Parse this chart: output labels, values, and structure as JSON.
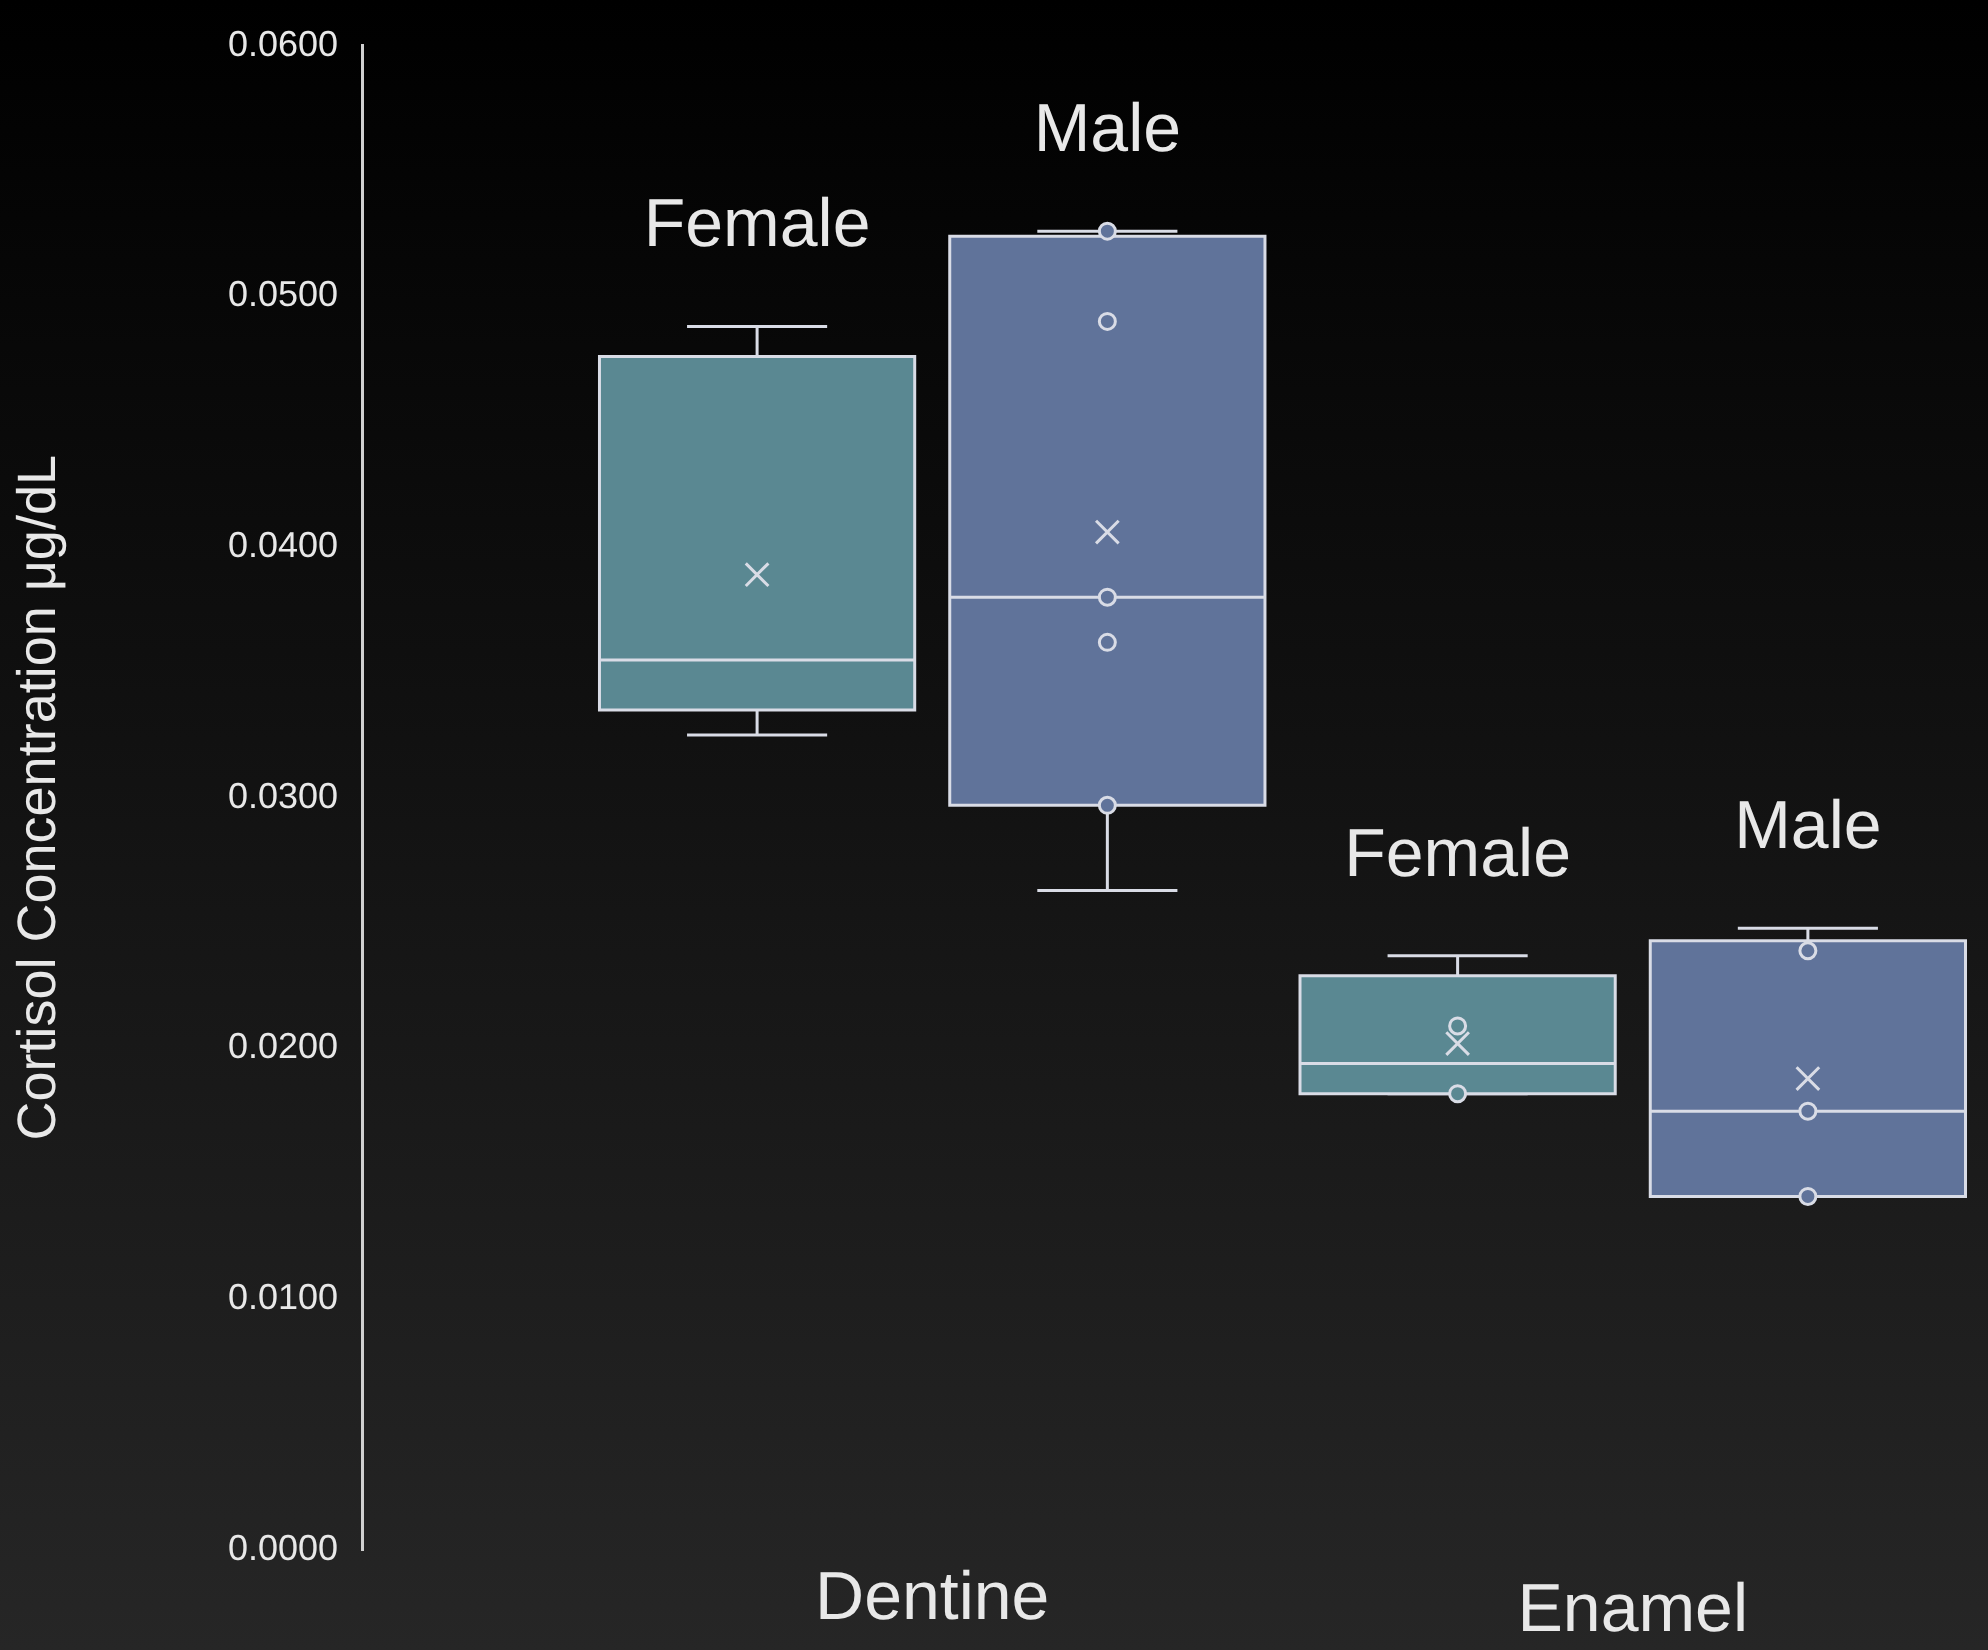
{
  "chart_data": {
    "type": "box",
    "ylabel": "Cortisol Concentration μg/dL",
    "categories": [
      "Dentine",
      "Enamel"
    ],
    "ylim": [
      0,
      0.06
    ],
    "yticks": [
      {
        "value": 0,
        "label": "0.0000"
      },
      {
        "value": 0.01,
        "label": "0.0100"
      },
      {
        "value": 0.02,
        "label": "0.0200"
      },
      {
        "value": 0.03,
        "label": "0.0300"
      },
      {
        "value": 0.04,
        "label": "0.0400"
      },
      {
        "value": 0.05,
        "label": "0.0500"
      },
      {
        "value": 0.06,
        "label": "0.0600"
      }
    ],
    "grid": false,
    "series": [
      {
        "name": "Female",
        "color": "#5a8892",
        "boxes": [
          {
            "low": 0.0325,
            "q1": 0.0335,
            "median": 0.0355,
            "q3": 0.0476,
            "high": 0.0488,
            "mean": 0.0389
          },
          {
            "low": 0.0182,
            "q1": 0.0182,
            "median": 0.0194,
            "q3": 0.0229,
            "high": 0.0237,
            "mean": 0.0202,
            "outliers": [
              0.0209,
              0.0182
            ]
          }
        ]
      },
      {
        "name": "Male",
        "color": "#60739a",
        "boxes": [
          {
            "low": 0.0263,
            "q1": 0.0297,
            "median": 0.038,
            "q3": 0.0524,
            "high": 0.0526,
            "mean": 0.0406,
            "outliers": [
              0.0526,
              0.049,
              0.038,
              0.0362,
              0.0297
            ]
          },
          {
            "low": 0.0141,
            "q1": 0.0141,
            "median": 0.0175,
            "q3": 0.0243,
            "high": 0.0248,
            "mean": 0.0188,
            "outliers": [
              0.0239,
              0.0175,
              0.0141
            ]
          }
        ]
      }
    ]
  }
}
